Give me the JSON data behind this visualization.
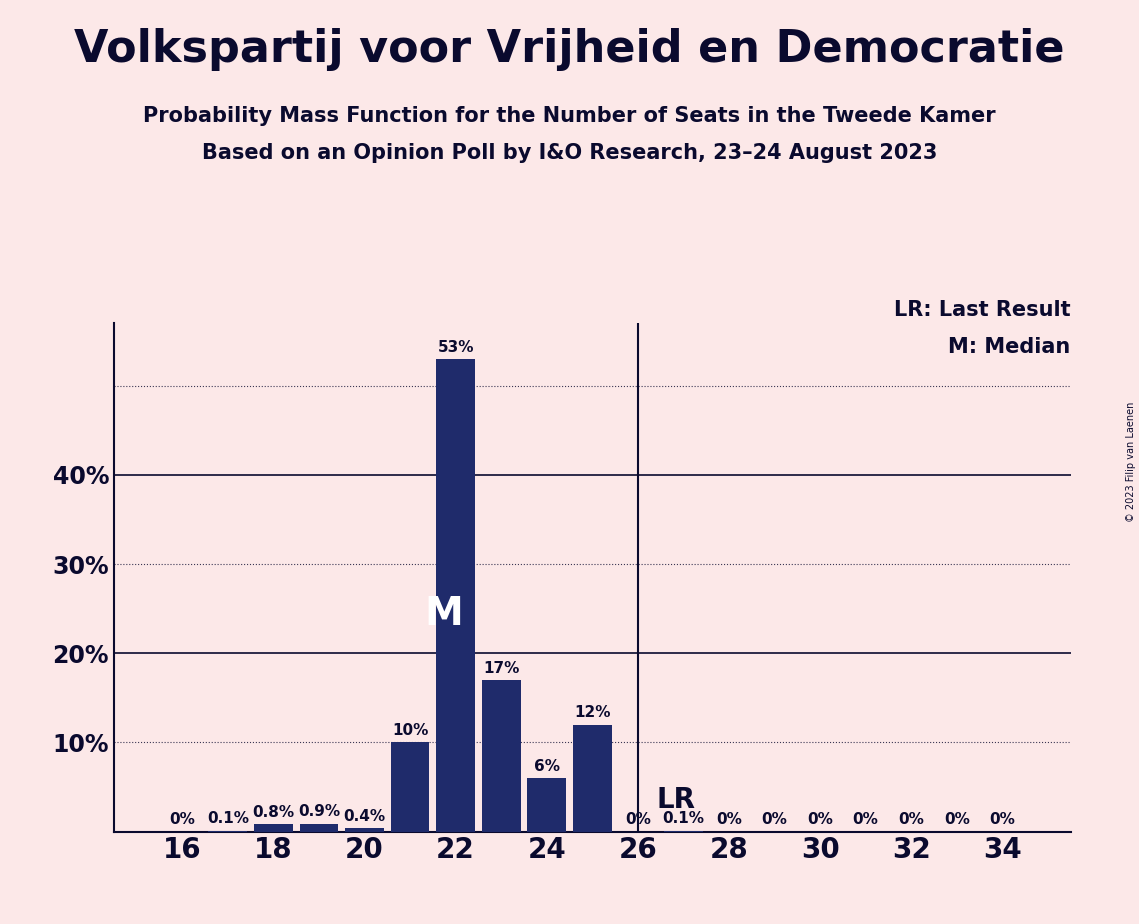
{
  "title": "Volkspartij voor Vrijheid en Democratie",
  "subtitle1": "Probability Mass Function for the Number of Seats in the Tweede Kamer",
  "subtitle2": "Based on an Opinion Poll by I&O Research, 23–24 August 2023",
  "copyright": "© 2023 Filip van Laenen",
  "seats": [
    16,
    17,
    18,
    19,
    20,
    21,
    22,
    23,
    24,
    25,
    26,
    27,
    28,
    29,
    30,
    31,
    32,
    33,
    34
  ],
  "probabilities": [
    0.0,
    0.1,
    0.8,
    0.9,
    0.4,
    10.0,
    53.0,
    17.0,
    6.0,
    12.0,
    0.0,
    0.1,
    0.0,
    0.0,
    0.0,
    0.0,
    0.0,
    0.0,
    0.0
  ],
  "bar_color": "#1f2b6b",
  "background_color": "#fce8e8",
  "text_color": "#0a0a2e",
  "median_seat": 22,
  "last_result_seat": 26,
  "yticks": [
    10,
    20,
    30,
    40
  ],
  "dotted_lines": [
    10,
    30,
    50
  ],
  "solid_lines": [
    20,
    40
  ],
  "xlim": [
    14.5,
    35.5
  ],
  "ylim": [
    0,
    57
  ],
  "xlabel_seats": [
    16,
    18,
    20,
    22,
    24,
    26,
    28,
    30,
    32,
    34
  ],
  "legend_lr": "LR: Last Result",
  "legend_m": "M: Median",
  "lr_label": "LR",
  "m_label": "M",
  "bar_width": 0.85,
  "title_fontsize": 32,
  "subtitle_fontsize": 15,
  "ytick_fontsize": 17,
  "xtick_fontsize": 20,
  "label_fontsize": 11,
  "legend_fontsize": 15,
  "lr_fontsize": 20,
  "m_fontsize": 28,
  "copyright_fontsize": 7
}
